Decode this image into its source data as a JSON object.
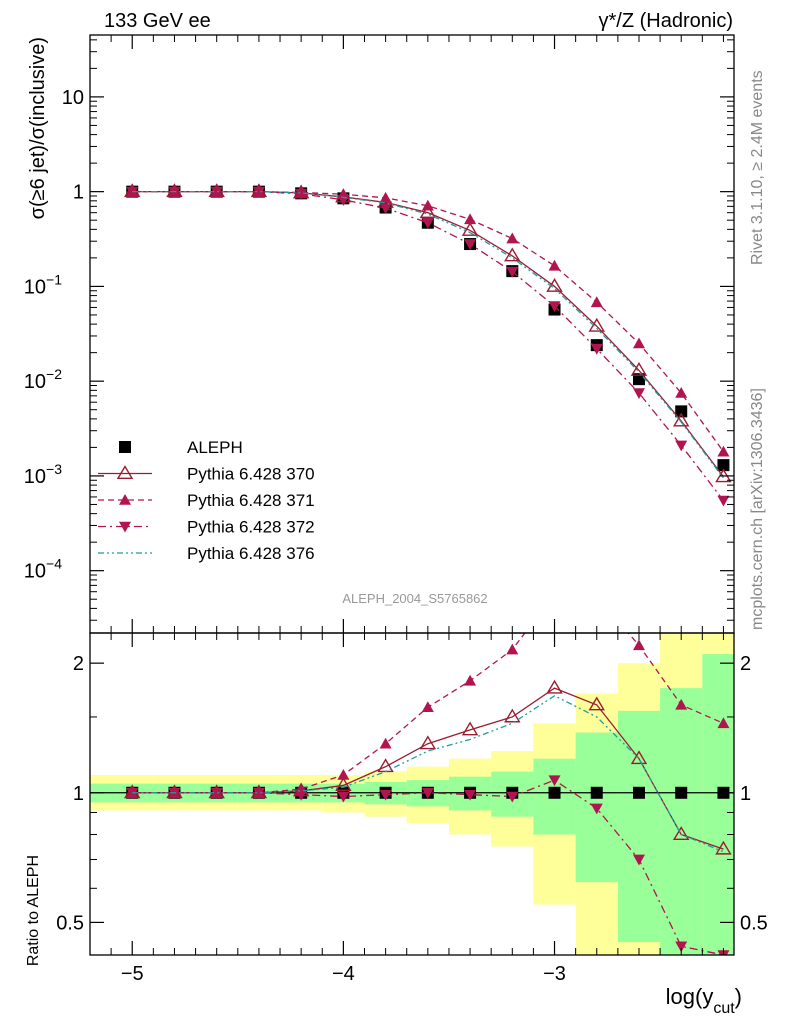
{
  "header": {
    "left": "133 GeV ee",
    "right": "γ*/Z (Hadronic)"
  },
  "side_texts": {
    "rivet": "Rivet 3.1.10, ≥ 2.4M events",
    "mcplots": "mcplots.cern.ch [arXiv:1306.3436]"
  },
  "watermark": "ALEPH_2004_S5765862",
  "axes": {
    "main_ylabel": "σ(≥6 jet)/σ(inclusive)",
    "ratio_ylabel": "Ratio to ALEPH",
    "xlabel": "log(y_cut)"
  },
  "ticks": {
    "x": [
      {
        "v": -5,
        "t": "−5"
      },
      {
        "v": -4,
        "t": "−4"
      },
      {
        "v": -3,
        "t": "−3"
      }
    ],
    "main_y": [
      {
        "v": 10,
        "t": "10"
      },
      {
        "v": 1,
        "t": "1"
      },
      {
        "v": 0.1,
        "t": "10",
        "e": "−1"
      },
      {
        "v": 0.01,
        "t": "10",
        "e": "−2"
      },
      {
        "v": 0.001,
        "t": "10",
        "e": "−3"
      },
      {
        "v": 0.0001,
        "t": "10",
        "e": "−4"
      }
    ],
    "ratio_y": [
      {
        "v": 2,
        "t": "2"
      },
      {
        "v": 1,
        "t": "1"
      },
      {
        "v": 0.5,
        "t": "0.5"
      }
    ]
  },
  "chart_data": {
    "type": "scatter",
    "x": [
      -5.0,
      -4.8,
      -4.6,
      -4.4,
      -4.2,
      -4.0,
      -3.8,
      -3.6,
      -3.4,
      -3.2,
      -3.0,
      -2.8,
      -2.6,
      -2.4,
      -2.2
    ],
    "xlim": [
      -5.2,
      -2.15
    ],
    "ylim_main": [
      2.2e-05,
      45
    ],
    "yscale_main": "log",
    "ylim_ratio": [
      0.42,
      2.35
    ],
    "yscale_ratio": "log",
    "bin_edges": [
      -5.2,
      -4.9,
      -4.7,
      -4.5,
      -4.3,
      -4.1,
      -3.9,
      -3.7,
      -3.5,
      -3.3,
      -3.1,
      -2.9,
      -2.7,
      -2.5,
      -2.3,
      -2.15
    ],
    "band_total": [
      [
        0.91,
        1.1
      ],
      [
        0.91,
        1.1
      ],
      [
        0.91,
        1.1
      ],
      [
        0.91,
        1.1
      ],
      [
        0.91,
        1.1
      ],
      [
        0.9,
        1.1
      ],
      [
        0.88,
        1.12
      ],
      [
        0.85,
        1.15
      ],
      [
        0.8,
        1.2
      ],
      [
        0.75,
        1.25
      ],
      [
        0.55,
        1.45
      ],
      [
        0.3,
        1.7
      ],
      [
        0.2,
        2.0
      ],
      [
        0.15,
        2.35
      ],
      [
        0.1,
        2.35
      ]
    ],
    "band_stat": [
      [
        0.95,
        1.05
      ],
      [
        0.95,
        1.05
      ],
      [
        0.95,
        1.05
      ],
      [
        0.95,
        1.05
      ],
      [
        0.95,
        1.05
      ],
      [
        0.95,
        1.05
      ],
      [
        0.94,
        1.06
      ],
      [
        0.93,
        1.07
      ],
      [
        0.91,
        1.09
      ],
      [
        0.88,
        1.12
      ],
      [
        0.8,
        1.2
      ],
      [
        0.62,
        1.38
      ],
      [
        0.45,
        1.55
      ],
      [
        0.35,
        1.75
      ],
      [
        0.25,
        2.1
      ]
    ],
    "series": [
      {
        "name": "ALEPH",
        "color": "#000000",
        "marker": "square",
        "values": [
          1.0,
          1.0,
          1.0,
          1.0,
          0.96,
          0.85,
          0.68,
          0.47,
          0.28,
          0.145,
          0.057,
          0.024,
          0.0105,
          0.0048,
          0.0013
        ]
      },
      {
        "name": "Pythia 6.428 370",
        "color": "#9b1c31",
        "marker": "open-triangle-up",
        "line": "solid",
        "values": [
          1.0,
          1.0,
          1.0,
          1.0,
          0.97,
          0.88,
          0.77,
          0.6,
          0.39,
          0.21,
          0.1,
          0.038,
          0.013,
          0.0038,
          0.00098
        ],
        "ratio": [
          1.0,
          1.0,
          1.0,
          1.0,
          1.01,
          1.04,
          1.15,
          1.3,
          1.4,
          1.5,
          1.75,
          1.6,
          1.2,
          0.8,
          0.74
        ]
      },
      {
        "name": "Pythia 6.428 371",
        "color": "#b0154f",
        "marker": "triangle-up",
        "line": "dashed",
        "values": [
          1.0,
          1.0,
          1.0,
          1.0,
          0.98,
          0.94,
          0.86,
          0.71,
          0.51,
          0.32,
          0.165,
          0.068,
          0.025,
          0.0075,
          0.0018
        ],
        "ratio": [
          1.0,
          1.0,
          1.0,
          1.0,
          1.02,
          1.1,
          1.3,
          1.58,
          1.82,
          2.15,
          2.9,
          2.85,
          2.2,
          1.6,
          1.45
        ]
      },
      {
        "name": "Pythia 6.428 372",
        "color": "#b0154f",
        "marker": "triangle-down",
        "line": "dashdot",
        "values": [
          1.0,
          1.0,
          1.0,
          1.0,
          0.95,
          0.82,
          0.67,
          0.47,
          0.28,
          0.143,
          0.062,
          0.022,
          0.0075,
          0.0021,
          0.00055
        ],
        "ratio": [
          1.0,
          1.0,
          1.0,
          1.0,
          0.99,
          0.98,
          0.99,
          1.0,
          0.99,
          0.98,
          1.07,
          0.92,
          0.7,
          0.44,
          0.42
        ]
      },
      {
        "name": "Pythia 6.428 376",
        "color": "#1f9e9e",
        "marker": "none",
        "line": "dashdotdot",
        "values": [
          1.0,
          1.0,
          1.0,
          1.0,
          0.97,
          0.87,
          0.76,
          0.58,
          0.37,
          0.2,
          0.095,
          0.036,
          0.0125,
          0.0037,
          0.00095
        ],
        "ratio": [
          1.0,
          1.0,
          1.0,
          1.0,
          1.01,
          1.03,
          1.12,
          1.25,
          1.33,
          1.45,
          1.68,
          1.5,
          1.2,
          0.8,
          0.73
        ]
      }
    ]
  }
}
